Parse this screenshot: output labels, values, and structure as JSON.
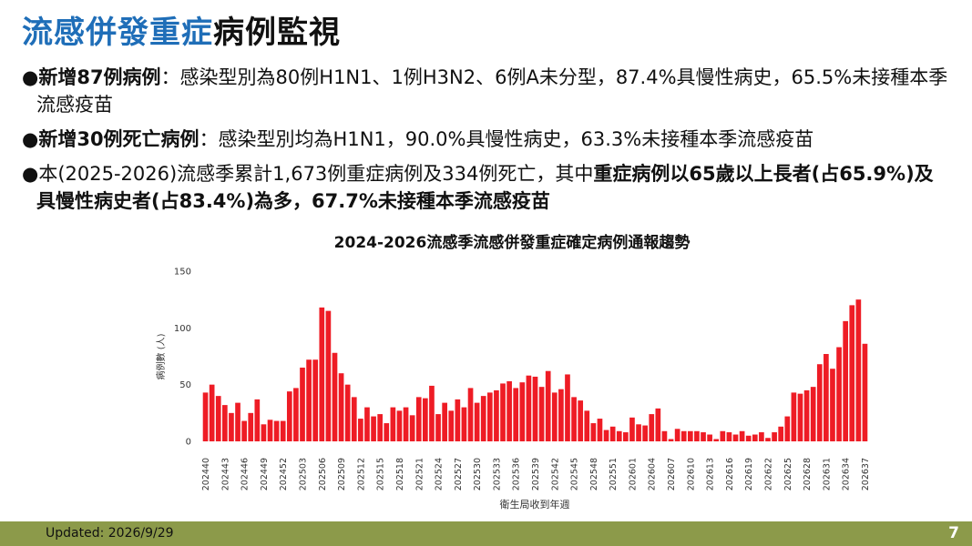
{
  "header": {
    "title": [
      "流感併發重症",
      "病例監視"
    ]
  },
  "bullets": [
    [
      {
        "text": "新增87例病例",
        "bold": true
      },
      {
        "text": "：感染型別為80例H1N1、1例H3N2、6例A未分型，87.4%具慢性病史，65.5%未接種本季流感疫苗",
        "bold": false
      }
    ],
    [
      {
        "text": "新增30例死亡病例",
        "bold": true
      },
      {
        "text": "：感染型別均為H1N1，90.0%具慢性病史，63.3%未接種本季流感疫苗",
        "bold": false
      }
    ],
    [
      {
        "text": "本(2025-2026)流感季累計1,673例重症病例及334例死亡，其中",
        "bold": false
      },
      {
        "text": "重症病例以65歲以上長者(占65.9%)及具慢性病史者(占83.4%)為多，67.7%未接種本季流感疫苗",
        "bold": true
      }
    ]
  ],
  "footer": {
    "updated": "Updated: 2026/9/29",
    "page": "7"
  },
  "chart_data": {
    "type": "bar",
    "title": "2024-2026流感季流感併發重症確定病例通報趨勢",
    "y_label": "病例數 (人)",
    "x_label": "衛生局收到年週",
    "color": "#ee1c25",
    "ylim": [
      0,
      150
    ],
    "yticks": [
      0,
      50,
      100,
      150
    ],
    "grid": false,
    "categories": [
      "202440",
      null,
      null,
      "202443",
      null,
      null,
      "202446",
      null,
      null,
      "202449",
      null,
      null,
      "202452",
      null,
      null,
      "202503",
      null,
      null,
      "202506",
      null,
      null,
      "202509",
      null,
      null,
      "202512",
      null,
      null,
      "202515",
      null,
      null,
      "202518",
      null,
      null,
      "202521",
      null,
      null,
      "202524",
      null,
      null,
      "202527",
      null,
      null,
      "202530",
      null,
      null,
      "202533",
      null,
      null,
      "202536",
      null,
      null,
      "202539",
      null,
      null,
      "202542",
      null,
      null,
      "202545",
      null,
      null,
      "202548",
      null,
      null,
      "202551",
      null,
      null,
      "202601",
      null,
      null,
      "202604",
      null,
      null,
      "202607",
      null,
      null,
      "202610",
      null,
      null,
      "202613",
      null,
      null,
      "202616",
      null,
      null,
      "202619",
      null,
      null,
      "202622",
      null,
      null,
      "202625",
      null,
      null,
      "202628",
      null,
      null,
      "202631",
      null,
      null,
      "202634",
      null,
      null,
      "202637"
    ],
    "values": [
      43,
      50,
      40,
      32,
      25,
      34,
      18,
      25,
      37,
      15,
      19,
      18,
      18,
      44,
      47,
      65,
      72,
      72,
      118,
      115,
      78,
      60,
      50,
      39,
      20,
      30,
      22,
      24,
      16,
      30,
      27,
      30,
      23,
      39,
      38,
      49,
      24,
      34,
      27,
      37,
      30,
      47,
      34,
      40,
      43,
      45,
      51,
      53,
      47,
      52,
      58,
      57,
      48,
      62,
      43,
      46,
      59,
      39,
      36,
      27,
      16,
      20,
      10,
      13,
      9,
      8,
      21,
      15,
      14,
      24,
      29,
      9,
      2,
      11,
      9,
      9,
      9,
      8,
      6,
      2,
      9,
      8,
      6,
      9,
      5,
      6,
      8,
      3,
      8,
      13,
      22,
      43,
      42,
      45,
      48,
      68,
      77,
      64,
      83,
      106,
      120,
      125,
      86
    ]
  }
}
